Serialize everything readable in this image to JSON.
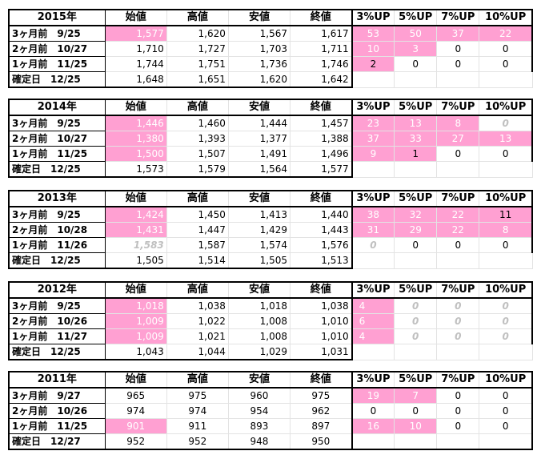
{
  "headers": [
    "始値",
    "高値",
    "安値",
    "終値",
    "3%UP",
    "5%UP",
    "7%UP",
    "10%UP"
  ],
  "colors": {
    "pink": "#ffa0d2",
    "gray_text": "#c0c0c0"
  },
  "blocks": [
    {
      "year": "2015年",
      "rows": [
        {
          "label": "3ヶ月前　9/25",
          "open": "1,577",
          "high": "1,620",
          "low": "1,567",
          "close": "1,617",
          "up3": "53",
          "up5": "50",
          "up7": "37",
          "up10": "22"
        },
        {
          "label": "2ヶ月前　10/27",
          "open": "1,710",
          "high": "1,727",
          "low": "1,703",
          "close": "1,711",
          "up3": "10",
          "up5": "3",
          "up7": "0",
          "up10": "0"
        },
        {
          "label": "1ヶ月前　11/25",
          "open": "1,744",
          "high": "1,751",
          "low": "1,736",
          "close": "1,746",
          "up3": "2",
          "up5": "0",
          "up7": "0",
          "up10": "0"
        },
        {
          "label": "確定日　12/25",
          "open": "1,648",
          "high": "1,651",
          "low": "1,620",
          "close": "1,642",
          "up3": "",
          "up5": "",
          "up7": "",
          "up10": ""
        }
      ]
    },
    {
      "year": "2014年",
      "rows": [
        {
          "label": "3ヶ月前　9/25",
          "open": "1,446",
          "high": "1,460",
          "low": "1,444",
          "close": "1,457",
          "up3": "23",
          "up5": "13",
          "up7": "8",
          "up10": "0"
        },
        {
          "label": "2ヶ月前　10/27",
          "open": "1,380",
          "high": "1,393",
          "low": "1,377",
          "close": "1,388",
          "up3": "37",
          "up5": "33",
          "up7": "27",
          "up10": "13"
        },
        {
          "label": "1ヶ月前　11/25",
          "open": "1,500",
          "high": "1,507",
          "low": "1,491",
          "close": "1,496",
          "up3": "9",
          "up5": "1",
          "up7": "0",
          "up10": "0"
        },
        {
          "label": "確定日　12/25",
          "open": "1,573",
          "high": "1,579",
          "low": "1,564",
          "close": "1,577",
          "up3": "",
          "up5": "",
          "up7": "",
          "up10": ""
        }
      ]
    },
    {
      "year": "2013年",
      "rows": [
        {
          "label": "3ヶ月前　9/25",
          "open": "1,424",
          "high": "1,450",
          "low": "1,413",
          "close": "1,440",
          "up3": "38",
          "up5": "32",
          "up7": "22",
          "up10": "11"
        },
        {
          "label": "2ヶ月前　10/28",
          "open": "1,431",
          "high": "1,447",
          "low": "1,429",
          "close": "1,443",
          "up3": "31",
          "up5": "29",
          "up7": "22",
          "up10": "8"
        },
        {
          "label": "1ヶ月前　11/26",
          "open": "1,583",
          "high": "1,587",
          "low": "1,574",
          "close": "1,576",
          "up3": "0",
          "up5": "0",
          "up7": "0",
          "up10": "0"
        },
        {
          "label": "確定日　12/25",
          "open": "1,505",
          "high": "1,514",
          "low": "1,505",
          "close": "1,513",
          "up3": "",
          "up5": "",
          "up7": "",
          "up10": ""
        }
      ]
    },
    {
      "year": "2012年",
      "rows": [
        {
          "label": "3ヶ月前　9/25",
          "open": "1,018",
          "high": "1,038",
          "low": "1,018",
          "close": "1,038",
          "up3": "4",
          "up5": "0",
          "up7": "0",
          "up10": "0"
        },
        {
          "label": "2ヶ月前　10/26",
          "open": "1,009",
          "high": "1,022",
          "low": "1,008",
          "close": "1,010",
          "up3": "6",
          "up5": "0",
          "up7": "0",
          "up10": "0"
        },
        {
          "label": "1ヶ月前　11/27",
          "open": "1,009",
          "high": "1,021",
          "low": "1,008",
          "close": "1,010",
          "up3": "4",
          "up5": "0",
          "up7": "0",
          "up10": "0"
        },
        {
          "label": "確定日　12/25",
          "open": "1,043",
          "high": "1,044",
          "low": "1,029",
          "close": "1,031",
          "up3": "",
          "up5": "",
          "up7": "",
          "up10": ""
        }
      ]
    },
    {
      "year": "2011年",
      "rows": [
        {
          "label": "3ヶ月前　9/27",
          "open": "965",
          "high": "975",
          "low": "960",
          "close": "975",
          "up3": "19",
          "up5": "7",
          "up7": "0",
          "up10": "0"
        },
        {
          "label": "2ヶ月前　10/26",
          "open": "974",
          "high": "974",
          "low": "954",
          "close": "962",
          "up3": "0",
          "up5": "0",
          "up7": "0",
          "up10": "0"
        },
        {
          "label": "1ヶ月前　11/25",
          "open": "901",
          "high": "911",
          "low": "893",
          "close": "897",
          "up3": "16",
          "up5": "10",
          "up7": "0",
          "up10": "0"
        },
        {
          "label": "確定日　12/27",
          "open": "952",
          "high": "952",
          "low": "948",
          "close": "950",
          "up3": "",
          "up5": "",
          "up7": "",
          "up10": ""
        }
      ]
    }
  ]
}
